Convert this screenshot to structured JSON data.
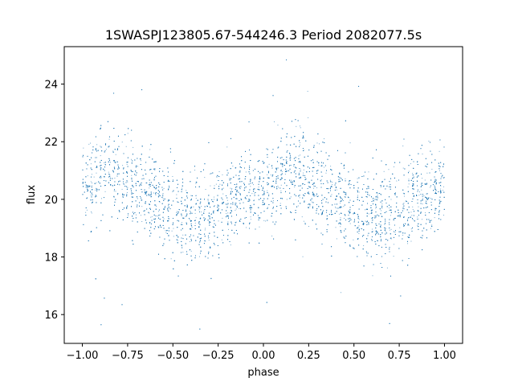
{
  "chart_data": {
    "type": "scatter",
    "title": "1SWASPJ123805.67-544246.3 Period 2082077.5s",
    "xlabel": "phase",
    "ylabel": "flux",
    "xlim": [
      -1.1,
      1.1
    ],
    "ylim": [
      15.0,
      25.3
    ],
    "xticks": [
      -1.0,
      -0.75,
      -0.5,
      -0.25,
      0.0,
      0.25,
      0.5,
      0.75,
      1.0
    ],
    "xtick_labels": [
      "−1.00",
      "−0.75",
      "−0.50",
      "−0.25",
      "0.00",
      "0.25",
      "0.50",
      "0.75",
      "1.00"
    ],
    "yticks": [
      16,
      18,
      20,
      22,
      24
    ],
    "ytick_labels": [
      "16",
      "18",
      "20",
      "22",
      "24"
    ],
    "grid": false,
    "point_color": "#1f77b4",
    "series": [
      {
        "x_range": [
          -1.0,
          1.0
        ],
        "mean_flux": 20.1,
        "note_points": "dense light curve, approx. several thousand points folded twice over phase -1 to 1",
        "profile": [
          {
            "phase": -1.0,
            "flux": 20.3
          },
          {
            "phase": -0.85,
            "flux": 20.9
          },
          {
            "phase": -0.75,
            "flux": 20.6
          },
          {
            "phase": -0.6,
            "flux": 20.0
          },
          {
            "phase": -0.45,
            "flux": 19.5
          },
          {
            "phase": -0.35,
            "flux": 19.3
          },
          {
            "phase": -0.25,
            "flux": 19.7
          },
          {
            "phase": -0.1,
            "flux": 20.2
          },
          {
            "phase": 0.0,
            "flux": 20.3
          },
          {
            "phase": 0.15,
            "flux": 20.9
          },
          {
            "phase": 0.25,
            "flux": 20.6
          },
          {
            "phase": 0.4,
            "flux": 20.0
          },
          {
            "phase": 0.55,
            "flux": 19.5
          },
          {
            "phase": 0.65,
            "flux": 19.3
          },
          {
            "phase": 0.75,
            "flux": 19.7
          },
          {
            "phase": 0.9,
            "flux": 20.2
          },
          {
            "phase": 1.0,
            "flux": 20.3
          }
        ]
      }
    ]
  }
}
